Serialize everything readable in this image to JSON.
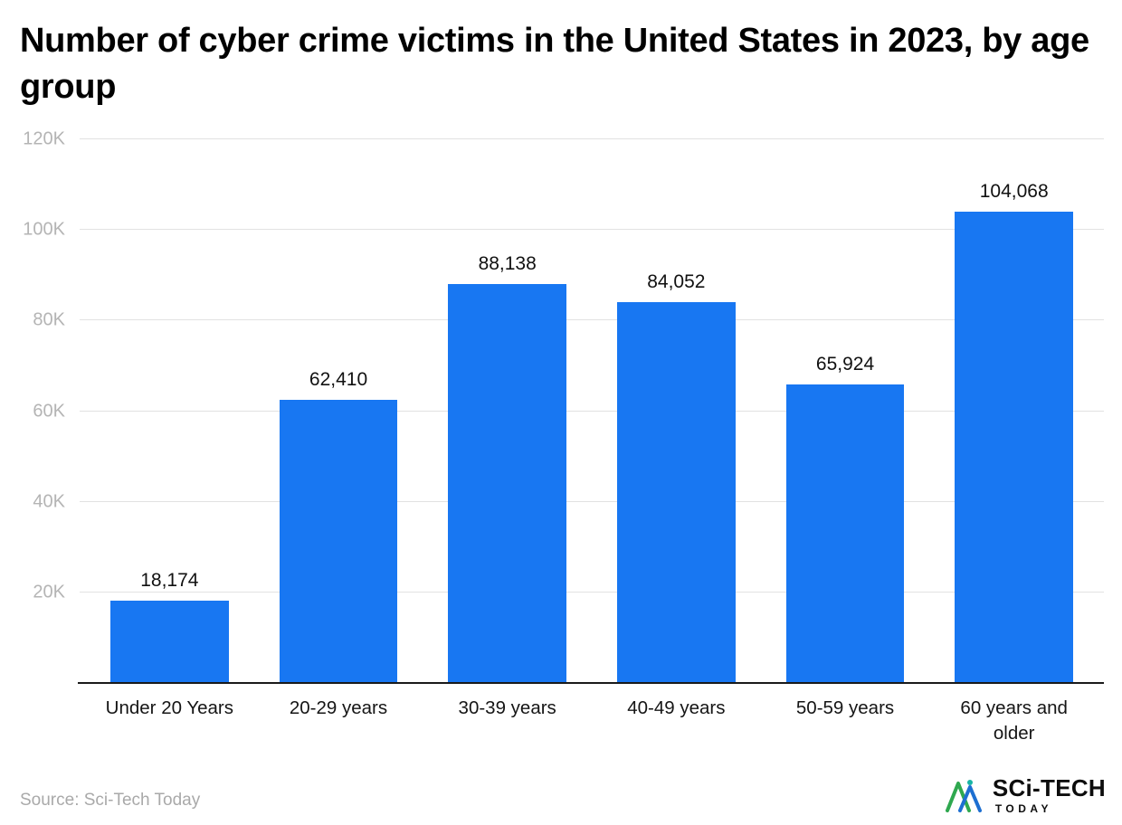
{
  "title": "Number of cyber crime victims in the United States in 2023, by age group",
  "source": {
    "label": "Source: Sci-Tech Today"
  },
  "logo": {
    "brand": "SCi-TECH",
    "sub": "TODAY"
  },
  "chart_data": {
    "type": "bar",
    "title": "Number of cyber crime victims in the United States in 2023, by age group",
    "categories": [
      "Under 20 Years",
      "20-29 years",
      "30-39 years",
      "40-49 years",
      "50-59 years",
      "60 years and older"
    ],
    "values": [
      18174,
      62410,
      88138,
      84052,
      65924,
      104068
    ],
    "value_labels": [
      "18,174",
      "62,410",
      "88,138",
      "84,052",
      "65,924",
      "104,068"
    ],
    "xlabel": "",
    "ylabel": "",
    "ylim": [
      0,
      120000
    ],
    "yticks": [
      20000,
      40000,
      60000,
      80000,
      100000,
      120000
    ],
    "ytick_labels": [
      "20K",
      "40K",
      "60K",
      "80K",
      "100K",
      "120K"
    ],
    "grid": true,
    "legend": false,
    "bar_color": "#1877f2",
    "gridline_color": "#e2e2e2",
    "tick_label_color": "#b4b4b4",
    "axis_line_color": "#1a1a1a"
  }
}
